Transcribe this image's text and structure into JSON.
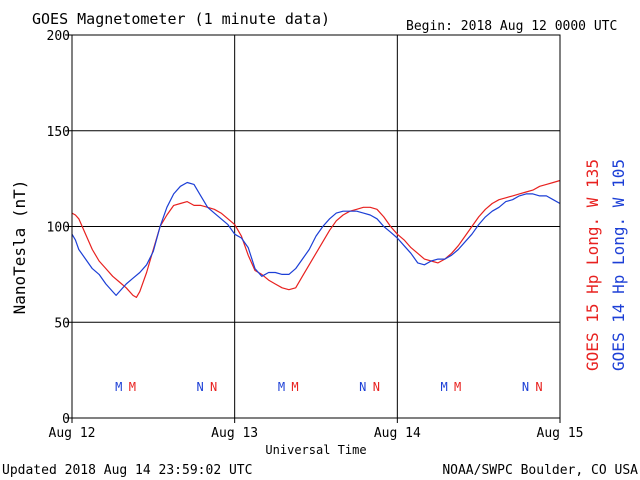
{
  "chart_data": {
    "type": "line",
    "title": "GOES Magnetometer (1 minute data)",
    "begin_label": "Begin:  2018 Aug 12 0000 UTC",
    "xlabel": "Universal Time",
    "ylabel": "NanoTesla (nT)",
    "xlim": [
      0,
      72
    ],
    "ylim": [
      0,
      200
    ],
    "y_ticks": [
      0,
      50,
      100,
      150,
      200
    ],
    "x_ticks": [
      {
        "hour": 0,
        "label": "Aug 12"
      },
      {
        "hour": 24,
        "label": "Aug 13"
      },
      {
        "hour": 48,
        "label": "Aug 14"
      },
      {
        "hour": 72,
        "label": "Aug 15"
      }
    ],
    "grid": true,
    "footer_left": "Updated 2018 Aug 14 23:59:02 UTC",
    "footer_right": "NOAA/SWPC Boulder, CO USA",
    "colors": {
      "goes15": "#e8211f",
      "goes14": "#1c3fd6",
      "axis": "#000000"
    },
    "legend": [
      {
        "label": "GOES 15 Hp  Long. W 135",
        "color": "#e8211f"
      },
      {
        "label": "GOES 14 Hp  Long. W 105",
        "color": "#1c3fd6"
      }
    ],
    "markers": [
      {
        "hour": 6.9,
        "text": "M",
        "color": "#1c3fd6"
      },
      {
        "hour": 8.9,
        "text": "M",
        "color": "#e8211f"
      },
      {
        "hour": 18.9,
        "text": "N",
        "color": "#1c3fd6"
      },
      {
        "hour": 20.9,
        "text": "N",
        "color": "#e8211f"
      },
      {
        "hour": 30.9,
        "text": "M",
        "color": "#1c3fd6"
      },
      {
        "hour": 32.9,
        "text": "M",
        "color": "#e8211f"
      },
      {
        "hour": 42.9,
        "text": "N",
        "color": "#1c3fd6"
      },
      {
        "hour": 44.9,
        "text": "N",
        "color": "#e8211f"
      },
      {
        "hour": 54.9,
        "text": "M",
        "color": "#1c3fd6"
      },
      {
        "hour": 56.9,
        "text": "M",
        "color": "#e8211f"
      },
      {
        "hour": 66.9,
        "text": "N",
        "color": "#1c3fd6"
      },
      {
        "hour": 68.9,
        "text": "N",
        "color": "#e8211f"
      }
    ],
    "series": [
      {
        "name": "GOES 15 Hp  Long. W 135",
        "color": "#e8211f",
        "x": [
          0,
          0.5,
          1,
          2,
          3,
          4,
          5,
          6,
          7,
          8,
          9,
          9.5,
          10,
          11,
          12,
          13,
          14,
          15,
          16,
          17,
          18,
          19,
          20,
          21,
          22,
          23,
          24,
          25,
          26,
          27,
          28,
          29,
          30,
          31,
          32,
          33,
          34,
          35,
          36,
          37,
          38,
          39,
          40,
          41,
          42,
          43,
          44,
          45,
          46,
          47,
          48,
          49,
          50,
          51,
          52,
          53,
          54,
          55,
          56,
          57,
          58,
          59,
          60,
          61,
          62,
          63,
          64,
          65,
          66,
          67,
          68,
          69,
          70,
          71,
          72
        ],
        "y": [
          107,
          106,
          104,
          96,
          88,
          82,
          78,
          74,
          71,
          68,
          64,
          63,
          66,
          76,
          88,
          100,
          106,
          111,
          112,
          113,
          111,
          111,
          110,
          109,
          107,
          104,
          101,
          95,
          85,
          77,
          75,
          72,
          70,
          68,
          67,
          68,
          74,
          80,
          86,
          92,
          98,
          103,
          106,
          108,
          109,
          110,
          110,
          109,
          105,
          100,
          96,
          93,
          89,
          86,
          83,
          82,
          81,
          83,
          86,
          90,
          95,
          100,
          105,
          109,
          112,
          114,
          115,
          116,
          117,
          118,
          119,
          121,
          122,
          123,
          124
        ]
      },
      {
        "name": "GOES 14 Hp  Long. W 105",
        "color": "#1c3fd6",
        "x": [
          0,
          0.5,
          1,
          2,
          3,
          4,
          5,
          6,
          6.5,
          7,
          8,
          9,
          10,
          11,
          12,
          13,
          14,
          15,
          16,
          17,
          18,
          19,
          20,
          21,
          22,
          23,
          24,
          25,
          26,
          27,
          28,
          29,
          30,
          31,
          32,
          33,
          34,
          35,
          36,
          37,
          38,
          39,
          40,
          41,
          42,
          43,
          44,
          45,
          46,
          47,
          48,
          49,
          50,
          51,
          52,
          53,
          54,
          55,
          56,
          57,
          58,
          59,
          60,
          61,
          62,
          63,
          64,
          65,
          66,
          67,
          68,
          69,
          70,
          71,
          72
        ],
        "y": [
          96,
          93,
          88,
          83,
          78,
          75,
          70,
          66,
          64,
          66,
          70,
          73,
          76,
          80,
          87,
          100,
          110,
          117,
          121,
          123,
          122,
          116,
          110,
          107,
          104,
          101,
          96,
          94,
          89,
          78,
          74,
          76,
          76,
          75,
          75,
          78,
          83,
          88,
          95,
          100,
          104,
          107,
          108,
          108,
          108,
          107,
          106,
          104,
          100,
          97,
          94,
          90,
          86,
          81,
          80,
          82,
          83,
          83,
          85,
          88,
          92,
          96,
          101,
          105,
          108,
          110,
          113,
          114,
          116,
          117,
          117,
          116,
          116,
          114,
          112
        ]
      }
    ]
  }
}
